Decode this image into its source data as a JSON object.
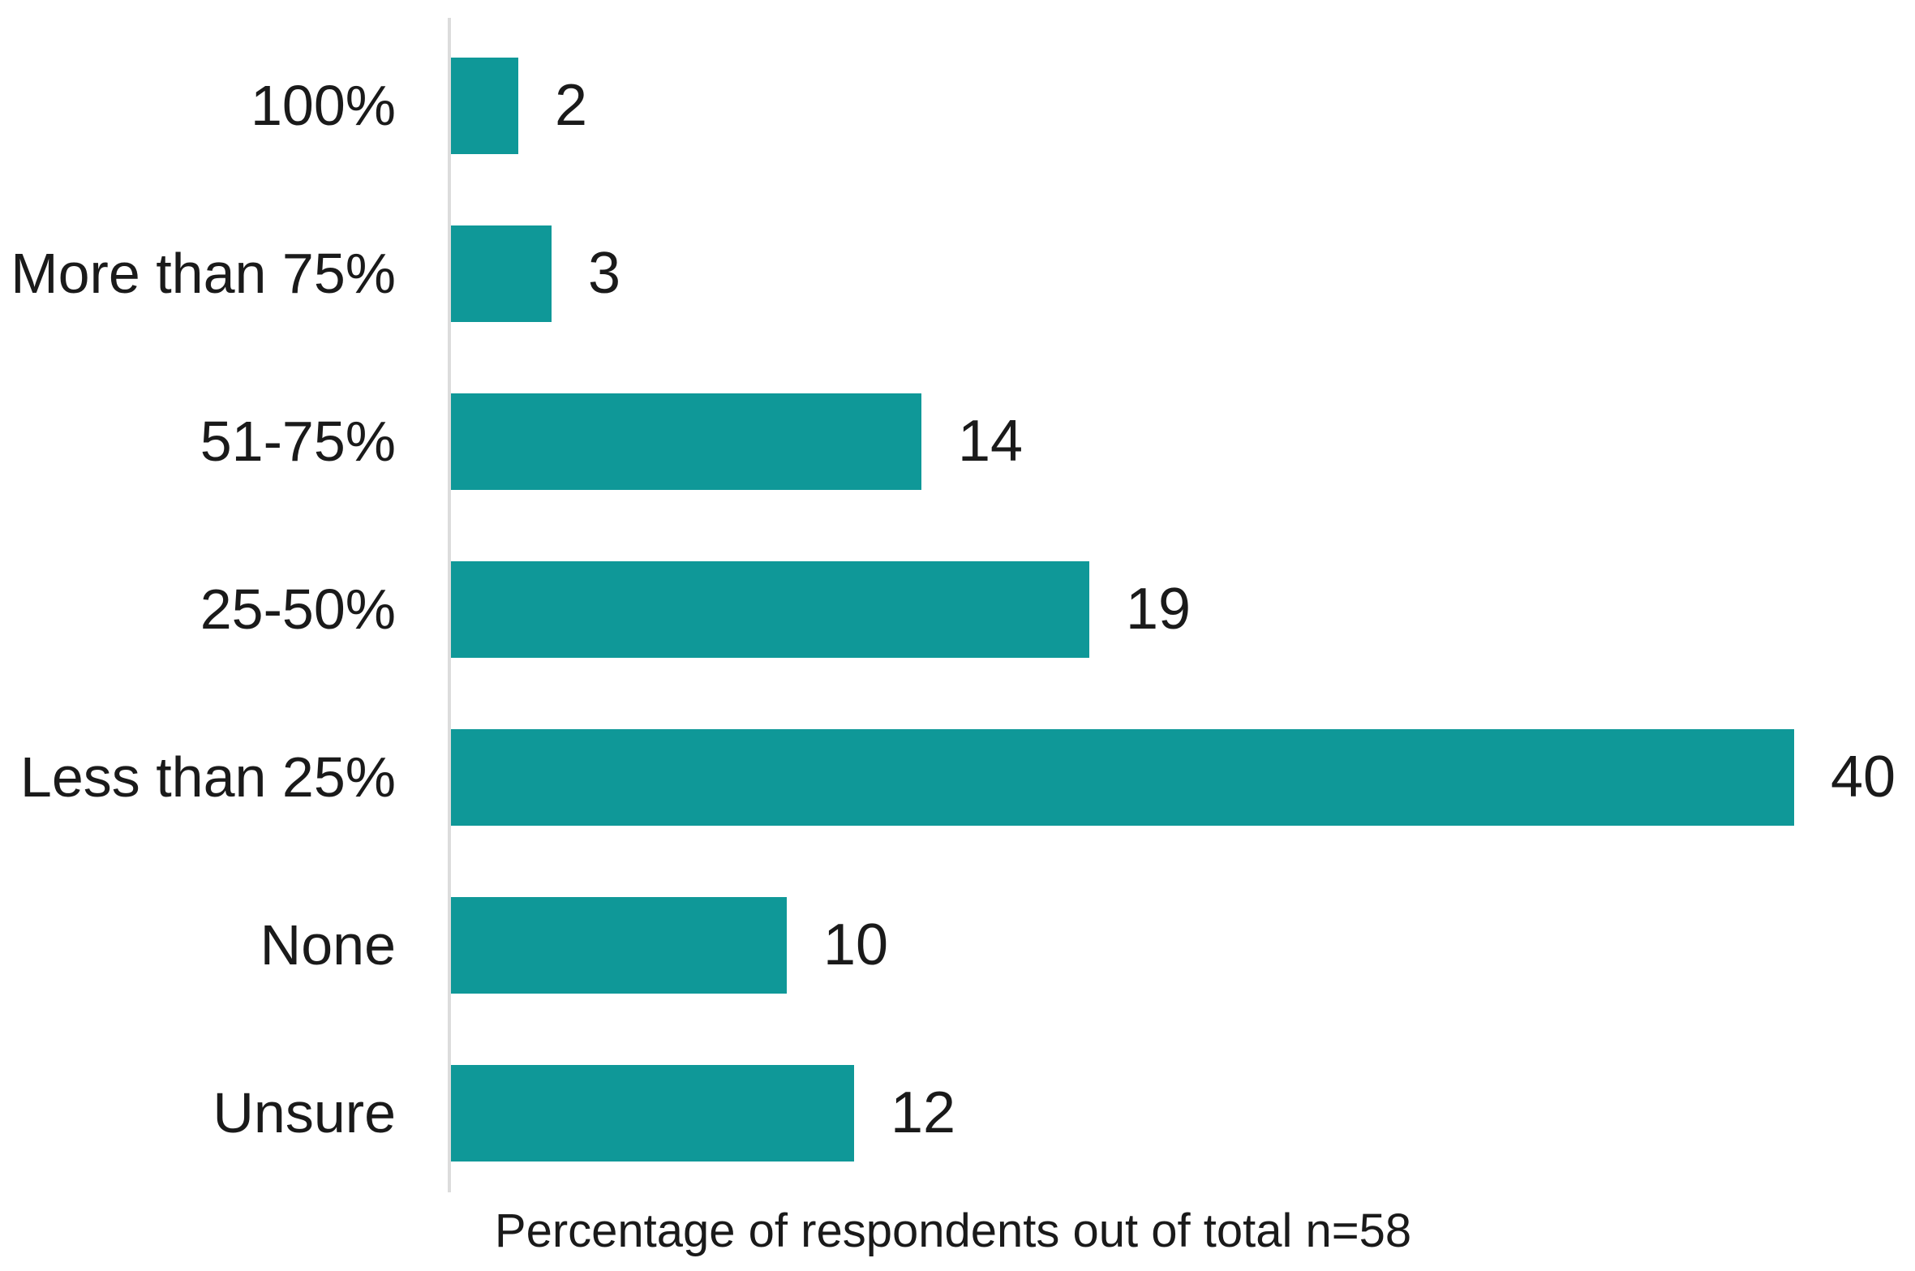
{
  "chart_data": {
    "type": "bar",
    "orientation": "horizontal",
    "title": "",
    "categories": [
      "100%",
      "More than 75%",
      "51-75%",
      "25-50%",
      "Less than 25%",
      "None",
      "Unsure"
    ],
    "values": [
      2,
      3,
      14,
      19,
      40,
      10,
      12
    ],
    "xlabel": "Percentage of respondents out of total n=58",
    "ylabel": "",
    "xlim": [
      0,
      44
    ],
    "grid": false,
    "legend_position": "none",
    "data_labels": true,
    "bar_color": "#0f9898",
    "axis_line_color": "#dcdcdc",
    "text_color": "#1a1a1a"
  }
}
